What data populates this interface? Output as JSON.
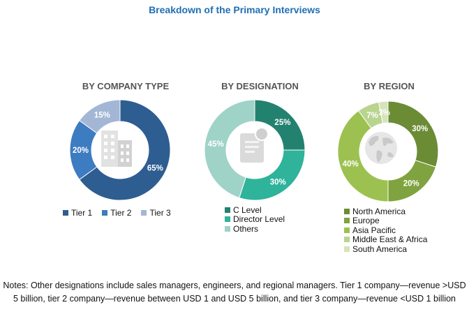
{
  "title": "Breakdown of the Primary Interviews",
  "chart_data": [
    {
      "type": "pie",
      "title": "BY COMPANY TYPE",
      "categories": [
        "Tier 1",
        "Tier 2",
        "Tier 3"
      ],
      "values": [
        65,
        20,
        15
      ],
      "labels": [
        "65%",
        "20%",
        "15%"
      ],
      "colors": [
        "#2e5d91",
        "#3d7cc1",
        "#a3b6d6"
      ],
      "hole": "donut",
      "center_icon": "building-icon",
      "legend_position": "bottom"
    },
    {
      "type": "pie",
      "title": "BY DESIGNATION",
      "categories": [
        "C Level",
        "Director Level",
        "Others"
      ],
      "values": [
        25,
        30,
        45
      ],
      "labels": [
        "25%",
        "30%",
        "45%"
      ],
      "colors": [
        "#23826f",
        "#2fb39a",
        "#9fd3c7"
      ],
      "hole": "donut",
      "center_icon": "document-icon",
      "legend_position": "bottom"
    },
    {
      "type": "pie",
      "title": "BY REGION",
      "categories": [
        "North America",
        "Europe",
        "Asia Pacific",
        "Middle East & Africa",
        "South America"
      ],
      "values": [
        30,
        20,
        40,
        7,
        3
      ],
      "labels": [
        "30%",
        "20%",
        "40%",
        "7%",
        "3%"
      ],
      "colors": [
        "#6b8c35",
        "#7fa33f",
        "#9dc150",
        "#b9d48e",
        "#d6e4bb"
      ],
      "hole": "donut",
      "center_icon": "globe-icon",
      "legend_position": "bottom"
    }
  ],
  "notes": "Notes: Other designations include sales managers, engineers, and regional managers. Tier 1 company—revenue >USD 5 billion, tier 2 company—revenue between USD 1 and USD 5 billion, and tier 3 company—revenue <USD 1 billion"
}
